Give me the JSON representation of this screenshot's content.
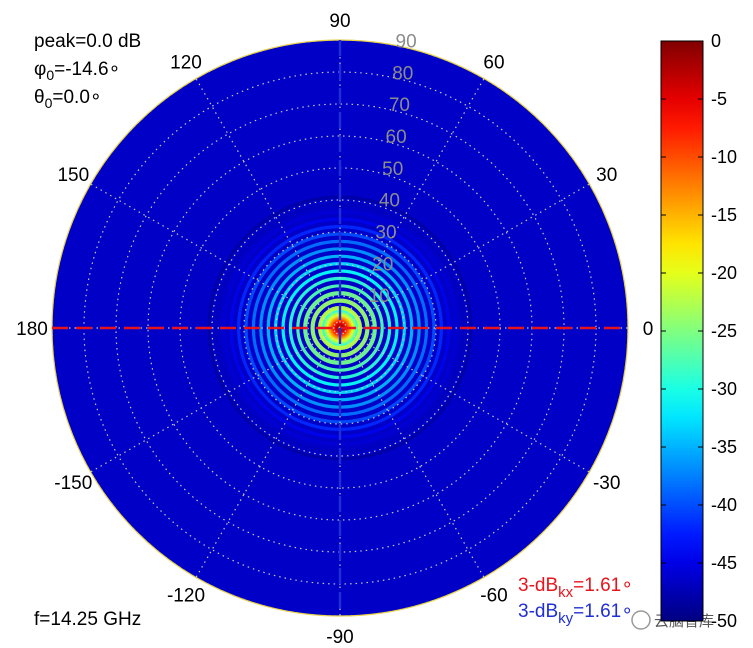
{
  "chart_data": {
    "type": "heatmap",
    "subtype": "polar-beam-pattern",
    "info_lines": [
      {
        "label": "peak=0.0 dB"
      },
      {
        "sym": "φ",
        "sub": "0",
        "text": "=-14.6∘"
      },
      {
        "sym": "θ",
        "sub": "0",
        "text": "=0.0∘"
      }
    ],
    "frequency_label": "f=14.25 GHz",
    "angle_ticks": [
      {
        "deg": 90,
        "label": "90"
      },
      {
        "deg": 60,
        "label": "60"
      },
      {
        "deg": 30,
        "label": "30"
      },
      {
        "deg": 0,
        "label": "0"
      },
      {
        "deg": -30,
        "label": "-30"
      },
      {
        "deg": -60,
        "label": "-60"
      },
      {
        "deg": -90,
        "label": "-90"
      },
      {
        "deg": -120,
        "label": "-120"
      },
      {
        "deg": -150,
        "label": "-150"
      },
      {
        "deg": 180,
        "label": "180"
      },
      {
        "deg": 150,
        "label": "150"
      },
      {
        "deg": 120,
        "label": "120"
      }
    ],
    "radial_ticks": [
      {
        "value": 10,
        "label": "10"
      },
      {
        "value": 20,
        "label": "20"
      },
      {
        "value": 30,
        "label": "30"
      },
      {
        "value": 40,
        "label": "40"
      },
      {
        "value": 50,
        "label": "50"
      },
      {
        "value": 60,
        "label": "60"
      },
      {
        "value": 70,
        "label": "70"
      },
      {
        "value": 80,
        "label": "80"
      },
      {
        "value": 90,
        "label": "90"
      }
    ],
    "theta_max": 90,
    "colorbar": {
      "min": -50,
      "max": 0,
      "ticks": [
        "0",
        "-5",
        "-10",
        "-15",
        "-20",
        "-25",
        "-30",
        "-35",
        "-40",
        "-45",
        "-50"
      ],
      "colormap": "jet"
    },
    "beam": {
      "peak_db": 0.0,
      "phi0_deg": -14.6,
      "theta0_deg": 0.0,
      "beamwidth_kx_deg": 1.61,
      "beamwidth_ky_deg": 1.61
    },
    "annotations": [
      {
        "id": "kx",
        "prefix": "3-dB",
        "sub": "kx",
        "text": "=1.61∘",
        "color": "#e8141d"
      },
      {
        "id": "ky",
        "prefix": "3-dB",
        "sub": "ky",
        "text": "=1.61∘",
        "color": "#1f2fd4"
      }
    ],
    "cut_lines": {
      "horizontal_color": "#e8141d",
      "vertical_color": "#1f2fd4"
    },
    "grid": true
  },
  "watermark": "云脑智库"
}
